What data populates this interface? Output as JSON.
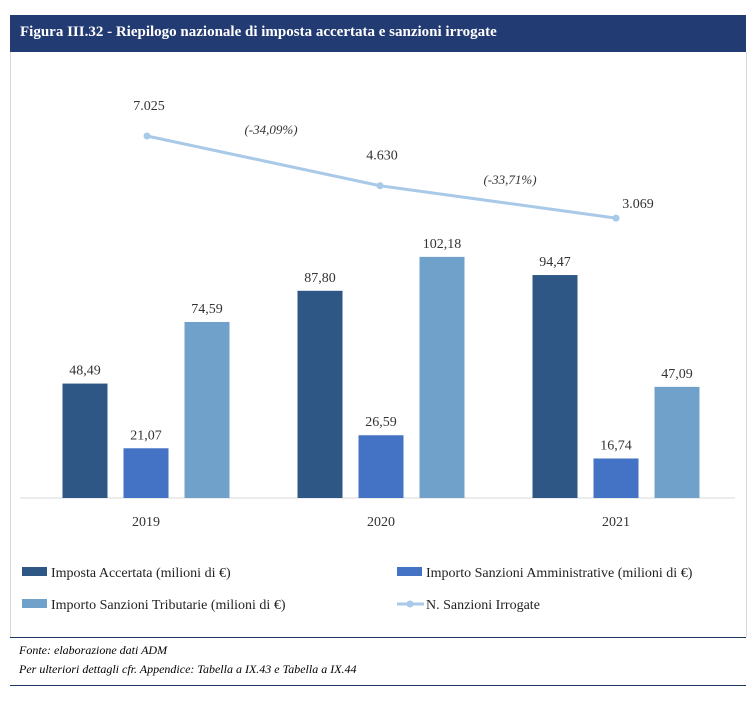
{
  "header": {
    "title": "Figura III.32 - Riepilogo nazionale di imposta accertata e sanzioni irrogate"
  },
  "chart_data": {
    "type": "bar",
    "categories": [
      "2019",
      "2020",
      "2021"
    ],
    "series": [
      {
        "name": "Imposta Accertata  (milioni di €)",
        "type": "bar",
        "color": "#2e5785",
        "values": [
          48.49,
          87.8,
          94.47
        ],
        "labels": [
          "48,49",
          "87,80",
          "94,47"
        ]
      },
      {
        "name": "Importo Sanzioni Amministrative (milioni di €)",
        "type": "bar",
        "color": "#4472c4",
        "values": [
          21.07,
          26.59,
          16.74
        ],
        "labels": [
          "21,07",
          "26,59",
          "16,74"
        ]
      },
      {
        "name": "Importo Sanzioni Tributarie (milioni di €)",
        "type": "bar",
        "color": "#70a1cb",
        "values": [
          74.59,
          102.18,
          47.09
        ],
        "labels": [
          "74,59",
          "102,18",
          "47,09"
        ]
      },
      {
        "name": "N. Sanzioni Irrogate",
        "type": "line",
        "color": "#a9c9e8",
        "values": [
          7025,
          4630,
          3069
        ],
        "labels": [
          "7.025",
          "4.630",
          "3.069"
        ]
      }
    ],
    "annotations": [
      "(-34,09%)",
      "(-33,71%)"
    ],
    "legend_position": "bottom",
    "grid": false
  },
  "source": {
    "line1": "Fonte: elaborazione dati ADM",
    "line2": "Per ulteriori dettagli cfr. Appendice: Tabella a IX.43 e Tabella a IX.44"
  }
}
